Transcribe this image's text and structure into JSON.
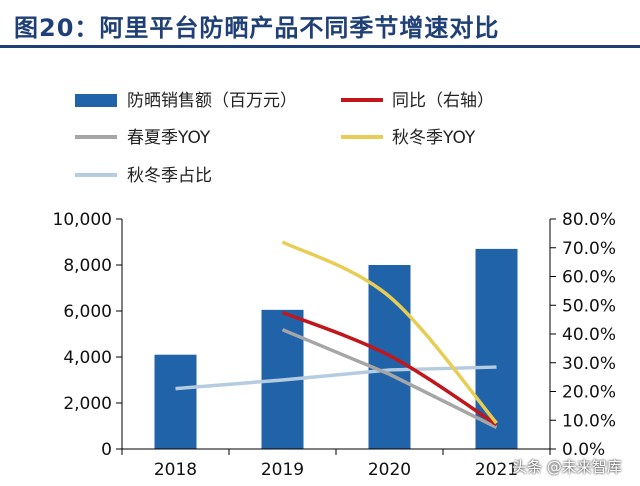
{
  "title": "图20：阿里平台防晒产品不同季节增速对比",
  "watermark": "头条 @未来智库",
  "colors": {
    "bar": "#2063a8",
    "yoy": "#c0161c",
    "spring_summer": "#a6a6a6",
    "autumn_winter": "#e8cd55",
    "autumn_winter_share": "#b5cbe0",
    "title": "#1f3f77"
  },
  "chart_data": {
    "type": "bar",
    "categories": [
      "2018",
      "2019",
      "2020",
      "2021"
    ],
    "left_axis": {
      "ylim": [
        0,
        10000
      ],
      "ticks": [
        "0",
        "2,000",
        "4,000",
        "6,000",
        "8,000",
        "10,000"
      ]
    },
    "right_axis": {
      "ylim": [
        0,
        80
      ],
      "ticks": [
        "0.0%",
        "10.0%",
        "20.0%",
        "30.0%",
        "40.0%",
        "50.0%",
        "60.0%",
        "70.0%",
        "80.0%"
      ]
    },
    "series": [
      {
        "name": "防晒销售额（百万元）",
        "kind": "bar",
        "axis": "left",
        "values": [
          4100,
          6050,
          8000,
          8700
        ]
      },
      {
        "name": "同比（右轴）",
        "kind": "line",
        "axis": "right",
        "values": [
          null,
          47.5,
          32.5,
          8.5
        ]
      },
      {
        "name": "春夏季YOY",
        "kind": "line",
        "axis": "right",
        "values": [
          null,
          41.5,
          26.0,
          7.5
        ]
      },
      {
        "name": "秋冬季YOY",
        "kind": "line",
        "axis": "right",
        "values": [
          null,
          72.0,
          53.0,
          9.0
        ]
      },
      {
        "name": "秋冬季占比",
        "kind": "line",
        "axis": "right",
        "values": [
          21.0,
          24.0,
          27.5,
          28.5
        ]
      }
    ],
    "legend_position": "top",
    "grid": false
  }
}
